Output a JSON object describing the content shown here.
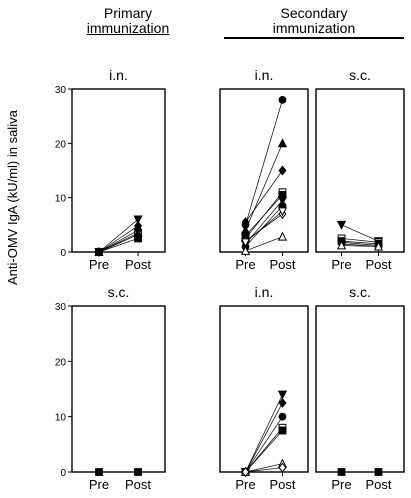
{
  "headers": {
    "primary": [
      "Primary",
      "immunization"
    ],
    "secondary": [
      "Secondary",
      "immunization"
    ]
  },
  "ylabel": "Anti-OMV IgA (kU/ml) in saliva",
  "chart_data": [
    {
      "type": "line",
      "title": "i.n.",
      "group": "Primary immunization",
      "categories": [
        "Pre",
        "Post"
      ],
      "ylim": [
        0,
        30
      ],
      "yticks": [
        0,
        10,
        20,
        30
      ],
      "series": [
        {
          "marker": "triangle-down",
          "values": [
            0,
            6.0
          ]
        },
        {
          "marker": "diamond",
          "values": [
            0,
            4.8
          ]
        },
        {
          "marker": "circle",
          "values": [
            0,
            4.0
          ]
        },
        {
          "marker": "open-square",
          "values": [
            0,
            3.2
          ]
        },
        {
          "marker": "square",
          "values": [
            0,
            2.5
          ]
        },
        {
          "marker": "triangle",
          "values": [
            0,
            3.5
          ]
        }
      ]
    },
    {
      "type": "line",
      "title": "i.n.",
      "group": "Secondary immunization",
      "categories": [
        "Pre",
        "Post"
      ],
      "ylim": [
        0,
        30
      ],
      "yticks": [],
      "series": [
        {
          "marker": "circle",
          "values": [
            5.0,
            28.0
          ]
        },
        {
          "marker": "triangle",
          "values": [
            4.0,
            20.0
          ]
        },
        {
          "marker": "diamond",
          "values": [
            5.5,
            15.0
          ]
        },
        {
          "marker": "open-square",
          "values": [
            2.5,
            11.0
          ]
        },
        {
          "marker": "square",
          "values": [
            3.0,
            10.5
          ]
        },
        {
          "marker": "triangle-down",
          "values": [
            1.5,
            9.5
          ]
        },
        {
          "marker": "circle",
          "values": [
            1.0,
            8.5
          ]
        },
        {
          "marker": "open-diamond",
          "values": [
            2.0,
            7.0
          ]
        },
        {
          "marker": "open-triangle-down",
          "values": [
            1.8,
            7.5
          ]
        },
        {
          "marker": "open-triangle",
          "values": [
            0.2,
            2.8
          ]
        }
      ]
    },
    {
      "type": "line",
      "title": "s.c.",
      "group": "Secondary immunization",
      "categories": [
        "Pre",
        "Post"
      ],
      "ylim": [
        0,
        30
      ],
      "yticks": [],
      "series": [
        {
          "marker": "triangle-down",
          "values": [
            5.0,
            2.0
          ]
        },
        {
          "marker": "open-square",
          "values": [
            2.5,
            1.8
          ]
        },
        {
          "marker": "square",
          "values": [
            2.0,
            1.5
          ]
        },
        {
          "marker": "circle",
          "values": [
            1.8,
            1.2
          ]
        },
        {
          "marker": "diamond",
          "values": [
            1.5,
            1.0
          ]
        },
        {
          "marker": "open-triangle",
          "values": [
            1.2,
            1.0
          ]
        }
      ]
    },
    {
      "type": "line",
      "title": "s.c.",
      "group": "Primary immunization",
      "categories": [
        "Pre",
        "Post"
      ],
      "ylim": [
        0,
        30
      ],
      "yticks": [
        0,
        10,
        20,
        30
      ],
      "series": [
        {
          "marker": "square",
          "values": [
            0,
            0
          ]
        }
      ]
    },
    {
      "type": "line",
      "title": "i.n.",
      "group": "Secondary immunization",
      "categories": [
        "Pre",
        "Post"
      ],
      "ylim": [
        0,
        30
      ],
      "yticks": [],
      "series": [
        {
          "marker": "triangle-down",
          "values": [
            0,
            14.0
          ]
        },
        {
          "marker": "diamond",
          "values": [
            0,
            12.5
          ]
        },
        {
          "marker": "circle",
          "values": [
            0,
            10.0
          ]
        },
        {
          "marker": "open-square",
          "values": [
            0,
            8.0
          ]
        },
        {
          "marker": "square",
          "values": [
            0,
            7.5
          ]
        },
        {
          "marker": "open-triangle",
          "values": [
            0,
            1.5
          ]
        },
        {
          "marker": "open-diamond",
          "values": [
            0,
            0.8
          ]
        }
      ]
    },
    {
      "type": "line",
      "title": "s.c.",
      "group": "Secondary immunization",
      "categories": [
        "Pre",
        "Post"
      ],
      "ylim": [
        0,
        30
      ],
      "yticks": [],
      "series": [
        {
          "marker": "square",
          "values": [
            0,
            0
          ]
        }
      ]
    }
  ]
}
